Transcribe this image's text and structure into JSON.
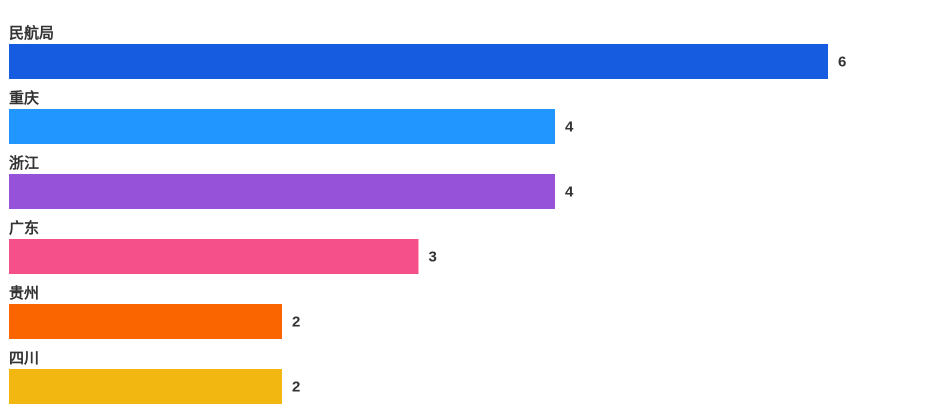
{
  "chart_data": {
    "type": "bar",
    "orientation": "horizontal",
    "categories": [
      "民航局",
      "重庆",
      "浙江",
      "广东",
      "贵州",
      "四川"
    ],
    "values": [
      6,
      4,
      4,
      3,
      2,
      2
    ],
    "colors": [
      "#155ce0",
      "#2196ff",
      "#9652d9",
      "#f5508a",
      "#fb6500",
      "#f2b811"
    ]
  }
}
